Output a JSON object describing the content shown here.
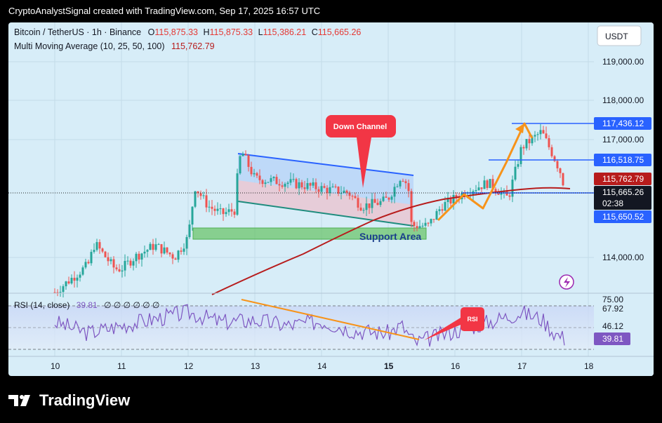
{
  "header": {
    "attribution": "CryptoAnalystSignal created with TradingView.com, Sep 17, 2025 16:57 UTC"
  },
  "legend": {
    "symbol": "Bitcoin / TetherUS · 1h · Binance",
    "o_label": "O",
    "o_value": "115,875.33",
    "h_label": "H",
    "h_value": "115,875.33",
    "l_label": "L",
    "l_value": "115,386.21",
    "c_label": "C",
    "c_value": "115,665.26",
    "ma_label": "Multi Moving Average (10, 25, 50, 100)",
    "ma_value": "115,762.79"
  },
  "currency": "USDT",
  "colors": {
    "up": "#26a69a",
    "down": "#ef5350",
    "ma": "#b71c1c",
    "rsi": "#7e57c2",
    "arrow": "#f7931a",
    "blue_line": "#2962ff",
    "callout": "#f23645",
    "support": "#4caf50"
  },
  "annotations": {
    "channel": "Down Channel",
    "support": "Support Area",
    "rsi_bubble": "RSI"
  },
  "rsi": {
    "label": "RSI (14, close)",
    "value": "39.81",
    "placeholders": "∅ ∅ ∅ ∅ ∅ ∅",
    "level_top": "75.00",
    "tag_high": "67.92",
    "tag_mid": "46.12",
    "tag_now": "39.81"
  },
  "price_tags": {
    "level_top": "117,436.12",
    "level_mid": "116,518.75",
    "ma": "115,762.79",
    "last": "115,665.26",
    "countdown": "02:38",
    "level_low": "115,650.52"
  },
  "footer": {
    "brand": "TradingView"
  },
  "chart_data": {
    "type": "candlestick",
    "symbol": "BTC/USDT",
    "timeframe": "1h",
    "y_axis_ticks": [
      119000,
      118000,
      117000,
      114000
    ],
    "y_tick_labels": [
      "119,000.00",
      "118,000.00",
      "117,000.00",
      "114,000.00"
    ],
    "x_axis_ticks": [
      "10",
      "11",
      "12",
      "13",
      "14",
      "15",
      "16",
      "17",
      "18"
    ],
    "horizontal_levels": [
      117436.12,
      116518.75,
      115650.52
    ],
    "last_price": 115665.26,
    "ma_last": 115762.79,
    "close_path": [
      [
        "10",
        113100
      ],
      [
        "10.5",
        113800
      ],
      [
        "10.6",
        114350
      ],
      [
        "10.9",
        113700
      ],
      [
        "11",
        113700
      ],
      [
        "11.2",
        114000
      ],
      [
        "11.5",
        114300
      ],
      [
        "11.8",
        114000
      ],
      [
        "12",
        114500
      ],
      [
        "12.1",
        115800
      ],
      [
        "12.3",
        115300
      ],
      [
        "12.5",
        115100
      ],
      [
        "12.7",
        115200
      ],
      [
        "12.75",
        116300
      ],
      [
        "12.8",
        116700
      ],
      [
        "13",
        116000
      ],
      [
        "13.5",
        115900
      ],
      [
        "14",
        115750
      ],
      [
        "14.4",
        115650
      ],
      [
        "14.6",
        115300
      ],
      [
        "14.9",
        115400
      ],
      [
        "15",
        115500
      ],
      [
        "15.2",
        116100
      ],
      [
        "15.3",
        115800
      ],
      [
        "15.35",
        114800
      ],
      [
        "15.6",
        114800
      ],
      [
        "15.8",
        115300
      ],
      [
        "16",
        115500
      ],
      [
        "16.2",
        115700
      ],
      [
        "16.5",
        115900
      ],
      [
        "16.8",
        115500
      ],
      [
        "17",
        116800
      ],
      [
        "17.3",
        117200
      ],
      [
        "17.5",
        116500
      ],
      [
        "17.6",
        116100
      ],
      [
        "17.65",
        115665
      ]
    ],
    "rsi_path": [
      [
        "10",
        55
      ],
      [
        "10.5",
        45
      ],
      [
        "11",
        52
      ],
      [
        "11.5",
        58
      ],
      [
        "12",
        64
      ],
      [
        "12.5",
        55
      ],
      [
        "13",
        57
      ],
      [
        "13.5",
        52
      ],
      [
        "14",
        56
      ],
      [
        "14.5",
        47
      ],
      [
        "15",
        45
      ],
      [
        "15.2",
        52
      ],
      [
        "15.4",
        36
      ],
      [
        "16",
        47
      ],
      [
        "16.5",
        55
      ],
      [
        "17",
        64
      ],
      [
        "17.3",
        58
      ],
      [
        "17.5",
        45
      ],
      [
        "17.65",
        39.81
      ]
    ],
    "rsi_levels": {
      "upper": 70,
      "middle": 50,
      "lower": 30
    }
  }
}
